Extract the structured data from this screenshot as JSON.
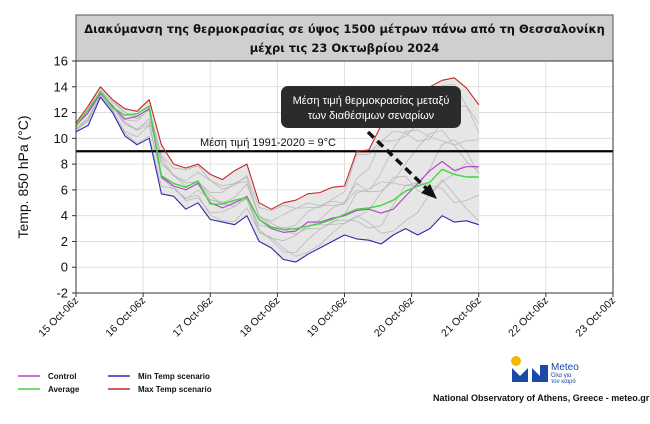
{
  "chart_data": {
    "type": "line",
    "title_lines": [
      "Διακύμανση της θερμοκρασίας σε ύψος 1500 μέτρων πάνω από τη Θεσσαλονίκη",
      "μέχρι τις 23 Οκτωβρίου 2024"
    ],
    "ylabel": "Temp. 850 hPa (°C)",
    "ylim": [
      -2,
      16
    ],
    "yticks": [
      -2,
      0,
      2,
      4,
      6,
      8,
      10,
      12,
      14,
      16
    ],
    "xticks": [
      "15 Oct-06z",
      "16 Oct-06z",
      "17 Oct-06z",
      "18 Oct-06z",
      "19 Oct-06z",
      "20 Oct-06z",
      "21 Oct-06z",
      "22 Oct-06z",
      "23 Oct-00z"
    ],
    "x_steps": 44,
    "reference_line": {
      "value": 9,
      "label": "Μέση τιμή 1991-2020 = 9°C"
    },
    "callout": {
      "lines": [
        "Μέση τιμή θερμοκρασίας μεταξύ",
        "των διαθέσιμων σεναρίων"
      ]
    },
    "series": [
      {
        "name": "Max Temp scenario",
        "color": "#c42828",
        "values": [
          11.2,
          12.5,
          14.0,
          13.0,
          12.3,
          12.1,
          13.0,
          9.5,
          8.0,
          7.7,
          8.0,
          7.2,
          6.8,
          7.5,
          8.0,
          5.0,
          4.5,
          5.0,
          5.2,
          5.7,
          5.8,
          6.2,
          6.3,
          9.0,
          9.1,
          11.0,
          12.0,
          12.8,
          13.5,
          14.0,
          14.5,
          14.7,
          13.9,
          12.6
        ]
      },
      {
        "name": "Min Temp scenario",
        "color": "#2a2ab0",
        "values": [
          10.5,
          11.0,
          13.2,
          12.0,
          10.2,
          9.5,
          10.0,
          5.7,
          5.5,
          4.5,
          5.0,
          3.7,
          3.5,
          3.3,
          4.0,
          2.0,
          1.5,
          0.6,
          0.4,
          1.0,
          1.5,
          2.0,
          2.5,
          2.2,
          2.1,
          1.8,
          2.5,
          3.0,
          2.5,
          3.0,
          4.0,
          3.5,
          3.6,
          3.3
        ]
      },
      {
        "name": "Control",
        "color": "#b040c8",
        "values": [
          11.0,
          12.0,
          13.5,
          12.5,
          11.5,
          11.7,
          12.3,
          7.0,
          6.3,
          6.0,
          6.5,
          5.0,
          4.6,
          5.0,
          5.5,
          3.7,
          3.0,
          2.7,
          2.8,
          3.5,
          3.5,
          3.8,
          4.0,
          4.4,
          4.5,
          4.2,
          4.5,
          5.5,
          6.5,
          7.5,
          8.2,
          7.5,
          7.8,
          7.8
        ]
      },
      {
        "name": "Average",
        "color": "#44d444",
        "values": [
          11.0,
          12.2,
          13.6,
          12.4,
          11.8,
          11.9,
          12.5,
          7.1,
          6.5,
          6.2,
          6.7,
          4.9,
          4.9,
          5.2,
          5.4,
          3.7,
          3.1,
          2.9,
          3.0,
          3.2,
          3.4,
          3.7,
          4.1,
          4.5,
          4.6,
          4.8,
          5.2,
          5.9,
          6.3,
          6.6,
          7.6,
          7.2,
          7.0,
          7.0
        ]
      }
    ],
    "legend": [
      {
        "name": "Control",
        "color": "#b040c8"
      },
      {
        "name": "Min Temp scenario",
        "color": "#2a2ab0"
      },
      {
        "name": "Average",
        "color": "#44d444"
      },
      {
        "name": "Max Temp scenario",
        "color": "#c42828"
      }
    ]
  },
  "footer": {
    "logo_name": "Meteo",
    "logo_tagline": [
      "Όλα για",
      "τον καιρό"
    ],
    "credit": "National Observatory of Athens, Greece - meteo.gr"
  }
}
